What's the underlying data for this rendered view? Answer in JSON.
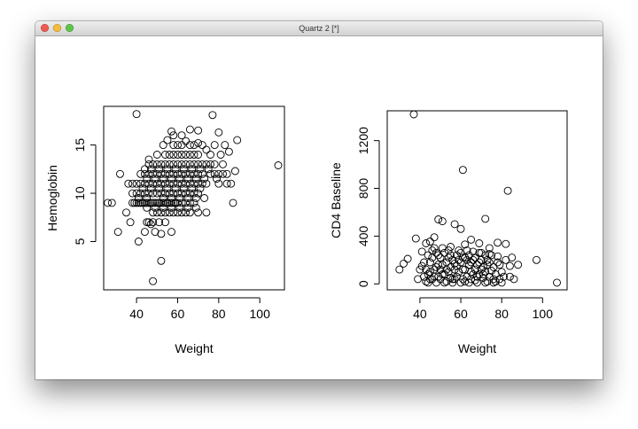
{
  "window": {
    "title": "Quartz 2 [*]",
    "buttons": [
      "close",
      "minimize",
      "zoom"
    ],
    "colors": {
      "close": "#ee5b52",
      "minimize": "#f7bc3d",
      "zoom": "#5fc64a"
    }
  },
  "chart_data": [
    {
      "type": "scatter",
      "xlabel": "Weight",
      "ylabel": "Hemoglobin",
      "x_ticks": [
        "40",
        "60",
        "80",
        "100"
      ],
      "y_ticks": [
        "5",
        "10",
        "15"
      ],
      "xlim": [
        24,
        112
      ],
      "ylim": [
        0,
        19
      ],
      "points": [
        [
          40,
          18.2
        ],
        [
          77,
          18.1
        ],
        [
          109,
          12.9
        ],
        [
          48,
          0.9
        ],
        [
          52,
          3
        ],
        [
          31,
          6
        ],
        [
          41,
          5
        ],
        [
          46,
          7
        ],
        [
          26,
          9
        ],
        [
          28,
          9
        ],
        [
          32,
          12
        ],
        [
          57,
          16.4
        ],
        [
          66,
          16.6
        ],
        [
          70,
          16.5
        ],
        [
          80,
          16.3
        ],
        [
          83,
          15
        ],
        [
          89,
          15.5
        ],
        [
          88,
          12.3
        ],
        [
          82,
          13
        ],
        [
          86,
          11
        ],
        [
          87,
          9
        ],
        [
          74,
          8
        ],
        [
          37,
          7
        ],
        [
          35,
          8
        ],
        [
          38,
          10
        ],
        [
          36,
          11
        ],
        [
          44,
          12.5
        ],
        [
          46,
          13.5
        ],
        [
          50,
          14
        ],
        [
          53,
          15
        ],
        [
          55,
          15.5
        ],
        [
          58,
          16
        ],
        [
          62,
          16
        ],
        [
          64,
          15.4
        ],
        [
          72,
          15
        ],
        [
          74,
          14.5
        ],
        [
          38,
          9
        ],
        [
          39,
          9
        ],
        [
          40,
          9
        ],
        [
          41,
          9
        ],
        [
          42,
          9
        ],
        [
          43,
          9
        ],
        [
          44,
          9
        ],
        [
          45,
          9
        ],
        [
          46,
          9
        ],
        [
          47,
          9
        ],
        [
          48,
          9
        ],
        [
          49,
          9
        ],
        [
          50,
          9
        ],
        [
          51,
          9
        ],
        [
          52,
          9
        ],
        [
          53,
          9
        ],
        [
          54,
          9
        ],
        [
          55,
          9
        ],
        [
          56,
          9
        ],
        [
          57,
          9
        ],
        [
          58,
          9
        ],
        [
          59,
          9
        ],
        [
          60,
          9
        ],
        [
          62,
          9
        ],
        [
          64,
          9
        ],
        [
          66,
          9
        ],
        [
          68,
          9
        ],
        [
          40,
          10
        ],
        [
          42,
          10
        ],
        [
          44,
          10
        ],
        [
          46,
          10
        ],
        [
          48,
          10
        ],
        [
          50,
          10
        ],
        [
          52,
          10
        ],
        [
          54,
          10
        ],
        [
          56,
          10
        ],
        [
          58,
          10
        ],
        [
          60,
          10
        ],
        [
          62,
          10
        ],
        [
          64,
          10
        ],
        [
          66,
          10
        ],
        [
          68,
          10
        ],
        [
          70,
          10
        ],
        [
          38,
          11
        ],
        [
          40,
          11
        ],
        [
          42,
          11
        ],
        [
          44,
          11
        ],
        [
          46,
          11
        ],
        [
          48,
          11
        ],
        [
          50,
          11
        ],
        [
          52,
          11
        ],
        [
          54,
          11
        ],
        [
          56,
          11
        ],
        [
          58,
          11
        ],
        [
          60,
          11
        ],
        [
          62,
          11
        ],
        [
          64,
          11
        ],
        [
          66,
          11
        ],
        [
          68,
          11
        ],
        [
          70,
          11
        ],
        [
          72,
          11
        ],
        [
          74,
          11
        ],
        [
          80,
          11
        ],
        [
          84,
          11
        ],
        [
          42,
          12
        ],
        [
          44,
          12
        ],
        [
          46,
          12
        ],
        [
          48,
          12
        ],
        [
          50,
          12
        ],
        [
          52,
          12
        ],
        [
          54,
          12
        ],
        [
          56,
          12
        ],
        [
          58,
          12
        ],
        [
          60,
          12
        ],
        [
          62,
          12
        ],
        [
          64,
          12
        ],
        [
          66,
          12
        ],
        [
          68,
          12
        ],
        [
          70,
          12
        ],
        [
          72,
          12
        ],
        [
          76,
          12
        ],
        [
          46,
          13
        ],
        [
          48,
          13
        ],
        [
          50,
          13
        ],
        [
          52,
          13
        ],
        [
          54,
          13
        ],
        [
          56,
          13
        ],
        [
          58,
          13
        ],
        [
          60,
          13
        ],
        [
          62,
          13
        ],
        [
          64,
          13
        ],
        [
          66,
          13
        ],
        [
          68,
          13
        ],
        [
          70,
          13
        ],
        [
          72,
          13
        ],
        [
          74,
          13
        ],
        [
          76,
          13
        ],
        [
          78,
          13
        ],
        [
          48,
          8
        ],
        [
          50,
          8
        ],
        [
          52,
          8
        ],
        [
          54,
          8
        ],
        [
          56,
          8
        ],
        [
          58,
          8
        ],
        [
          60,
          8
        ],
        [
          62,
          8
        ],
        [
          64,
          8
        ],
        [
          66,
          8
        ],
        [
          70,
          8
        ],
        [
          45,
          7
        ],
        [
          48,
          7
        ],
        [
          51,
          7
        ],
        [
          54,
          7
        ],
        [
          57,
          6
        ],
        [
          49,
          6
        ],
        [
          44,
          6
        ],
        [
          52,
          5.8
        ],
        [
          47,
          6.8
        ],
        [
          54,
          14
        ],
        [
          56,
          14
        ],
        [
          58,
          14
        ],
        [
          60,
          14
        ],
        [
          62,
          14
        ],
        [
          64,
          14
        ],
        [
          66,
          14
        ],
        [
          68,
          14
        ],
        [
          70,
          14
        ],
        [
          58,
          15
        ],
        [
          60,
          15
        ],
        [
          62,
          15
        ],
        [
          66,
          15
        ],
        [
          68,
          15
        ],
        [
          70,
          15.2
        ],
        [
          43,
          10.5
        ],
        [
          47,
          10.5
        ],
        [
          51,
          10.5
        ],
        [
          55,
          10.5
        ],
        [
          59,
          10.5
        ],
        [
          63,
          10.5
        ],
        [
          67,
          10.5
        ],
        [
          71,
          10.5
        ],
        [
          45,
          11.5
        ],
        [
          49,
          11.5
        ],
        [
          53,
          11.5
        ],
        [
          57,
          11.5
        ],
        [
          61,
          11.5
        ],
        [
          65,
          11.5
        ],
        [
          69,
          11.5
        ],
        [
          73,
          11.5
        ],
        [
          79,
          11.5
        ],
        [
          47,
          12.5
        ],
        [
          51,
          12.5
        ],
        [
          55,
          12.5
        ],
        [
          59,
          12.5
        ],
        [
          63,
          12.5
        ],
        [
          67,
          12.5
        ],
        [
          71,
          12.5
        ],
        [
          75,
          12.5
        ],
        [
          41,
          9.5
        ],
        [
          45,
          9.5
        ],
        [
          53,
          9.5
        ],
        [
          57,
          9.5
        ],
        [
          61,
          9.5
        ],
        [
          65,
          9.5
        ],
        [
          69,
          9.5
        ],
        [
          73,
          9.5
        ],
        [
          45,
          8.5
        ],
        [
          49,
          8.5
        ],
        [
          53,
          8.5
        ],
        [
          57,
          8.5
        ],
        [
          61,
          8.5
        ],
        [
          65,
          8.5
        ],
        [
          69,
          8.5
        ],
        [
          78,
          12
        ],
        [
          80,
          12
        ],
        [
          82,
          12
        ],
        [
          84,
          12
        ],
        [
          81,
          14
        ],
        [
          85,
          14.3
        ],
        [
          76,
          14
        ],
        [
          78,
          15
        ]
      ]
    },
    {
      "type": "scatter",
      "xlabel": "Weight",
      "ylabel": "CD4 Baseline",
      "x_ticks": [
        "40",
        "60",
        "80",
        "100"
      ],
      "y_ticks": [
        "0",
        "400",
        "800",
        "1200"
      ],
      "xlim": [
        24,
        112
      ],
      "ylim": [
        -50,
        1450
      ],
      "points": [
        [
          37,
          1420
        ],
        [
          61,
          955
        ],
        [
          83,
          780
        ],
        [
          49,
          540
        ],
        [
          51,
          525
        ],
        [
          72,
          545
        ],
        [
          57,
          500
        ],
        [
          60,
          460
        ],
        [
          47,
          390
        ],
        [
          38,
          380
        ],
        [
          43,
          340
        ],
        [
          45,
          355
        ],
        [
          65,
          370
        ],
        [
          69,
          340
        ],
        [
          78,
          345
        ],
        [
          82,
          335
        ],
        [
          32,
          170
        ],
        [
          34,
          210
        ],
        [
          39,
          40
        ],
        [
          97,
          200
        ],
        [
          107,
          10
        ],
        [
          88,
          160
        ],
        [
          85,
          220
        ],
        [
          84,
          60
        ],
        [
          86,
          40
        ],
        [
          30,
          120
        ],
        [
          41,
          270
        ],
        [
          55,
          310
        ],
        [
          62,
          330
        ],
        [
          74,
          300
        ],
        [
          40,
          120
        ],
        [
          42,
          180
        ],
        [
          44,
          80
        ],
        [
          46,
          220
        ],
        [
          48,
          140
        ],
        [
          50,
          40
        ],
        [
          52,
          260
        ],
        [
          54,
          100
        ],
        [
          56,
          200
        ],
        [
          58,
          60
        ],
        [
          60,
          180
        ],
        [
          62,
          120
        ],
        [
          64,
          240
        ],
        [
          66,
          80
        ],
        [
          68,
          160
        ],
        [
          70,
          200
        ],
        [
          72,
          100
        ],
        [
          74,
          60
        ],
        [
          76,
          140
        ],
        [
          78,
          180
        ],
        [
          80,
          100
        ],
        [
          82,
          200
        ],
        [
          84,
          150
        ],
        [
          43,
          20
        ],
        [
          45,
          100
        ],
        [
          47,
          300
        ],
        [
          49,
          60
        ],
        [
          51,
          160
        ],
        [
          53,
          20
        ],
        [
          55,
          240
        ],
        [
          57,
          120
        ],
        [
          59,
          280
        ],
        [
          61,
          40
        ],
        [
          63,
          200
        ],
        [
          65,
          100
        ],
        [
          67,
          30
        ],
        [
          69,
          260
        ],
        [
          71,
          140
        ],
        [
          73,
          20
        ],
        [
          75,
          240
        ],
        [
          77,
          80
        ],
        [
          79,
          160
        ],
        [
          81,
          60
        ],
        [
          42,
          60
        ],
        [
          44,
          240
        ],
        [
          46,
          40
        ],
        [
          48,
          260
        ],
        [
          50,
          120
        ],
        [
          52,
          80
        ],
        [
          54,
          220
        ],
        [
          56,
          40
        ],
        [
          58,
          150
        ],
        [
          60,
          260
        ],
        [
          62,
          20
        ],
        [
          64,
          160
        ],
        [
          66,
          200
        ],
        [
          68,
          60
        ],
        [
          70,
          120
        ],
        [
          72,
          240
        ],
        [
          74,
          180
        ],
        [
          76,
          40
        ],
        [
          45,
          180
        ],
        [
          47,
          120
        ],
        [
          49,
          240
        ],
        [
          51,
          80
        ],
        [
          53,
          180
        ],
        [
          55,
          50
        ],
        [
          57,
          170
        ],
        [
          59,
          100
        ],
        [
          61,
          220
        ],
        [
          63,
          60
        ],
        [
          65,
          180
        ],
        [
          67,
          120
        ],
        [
          69,
          80
        ],
        [
          71,
          50
        ],
        [
          73,
          160
        ],
        [
          75,
          110
        ],
        [
          77,
          20
        ],
        [
          41,
          150
        ],
        [
          43,
          120
        ],
        [
          45,
          40
        ],
        [
          47,
          60
        ],
        [
          49,
          160
        ],
        [
          51,
          300
        ],
        [
          53,
          120
        ],
        [
          55,
          140
        ],
        [
          57,
          40
        ],
        [
          59,
          200
        ],
        [
          61,
          120
        ],
        [
          63,
          280
        ],
        [
          65,
          40
        ],
        [
          67,
          220
        ],
        [
          69,
          180
        ],
        [
          71,
          80
        ],
        [
          73,
          200
        ],
        [
          79,
          40
        ],
        [
          46,
          280
        ],
        [
          50,
          220
        ],
        [
          54,
          280
        ],
        [
          58,
          240
        ],
        [
          62,
          220
        ],
        [
          66,
          270
        ],
        [
          70,
          260
        ],
        [
          74,
          250
        ],
        [
          78,
          230
        ],
        [
          44,
          10
        ],
        [
          48,
          10
        ],
        [
          52,
          10
        ],
        [
          56,
          10
        ],
        [
          60,
          10
        ],
        [
          64,
          10
        ],
        [
          68,
          10
        ],
        [
          72,
          10
        ],
        [
          76,
          10
        ],
        [
          80,
          10
        ]
      ]
    }
  ]
}
